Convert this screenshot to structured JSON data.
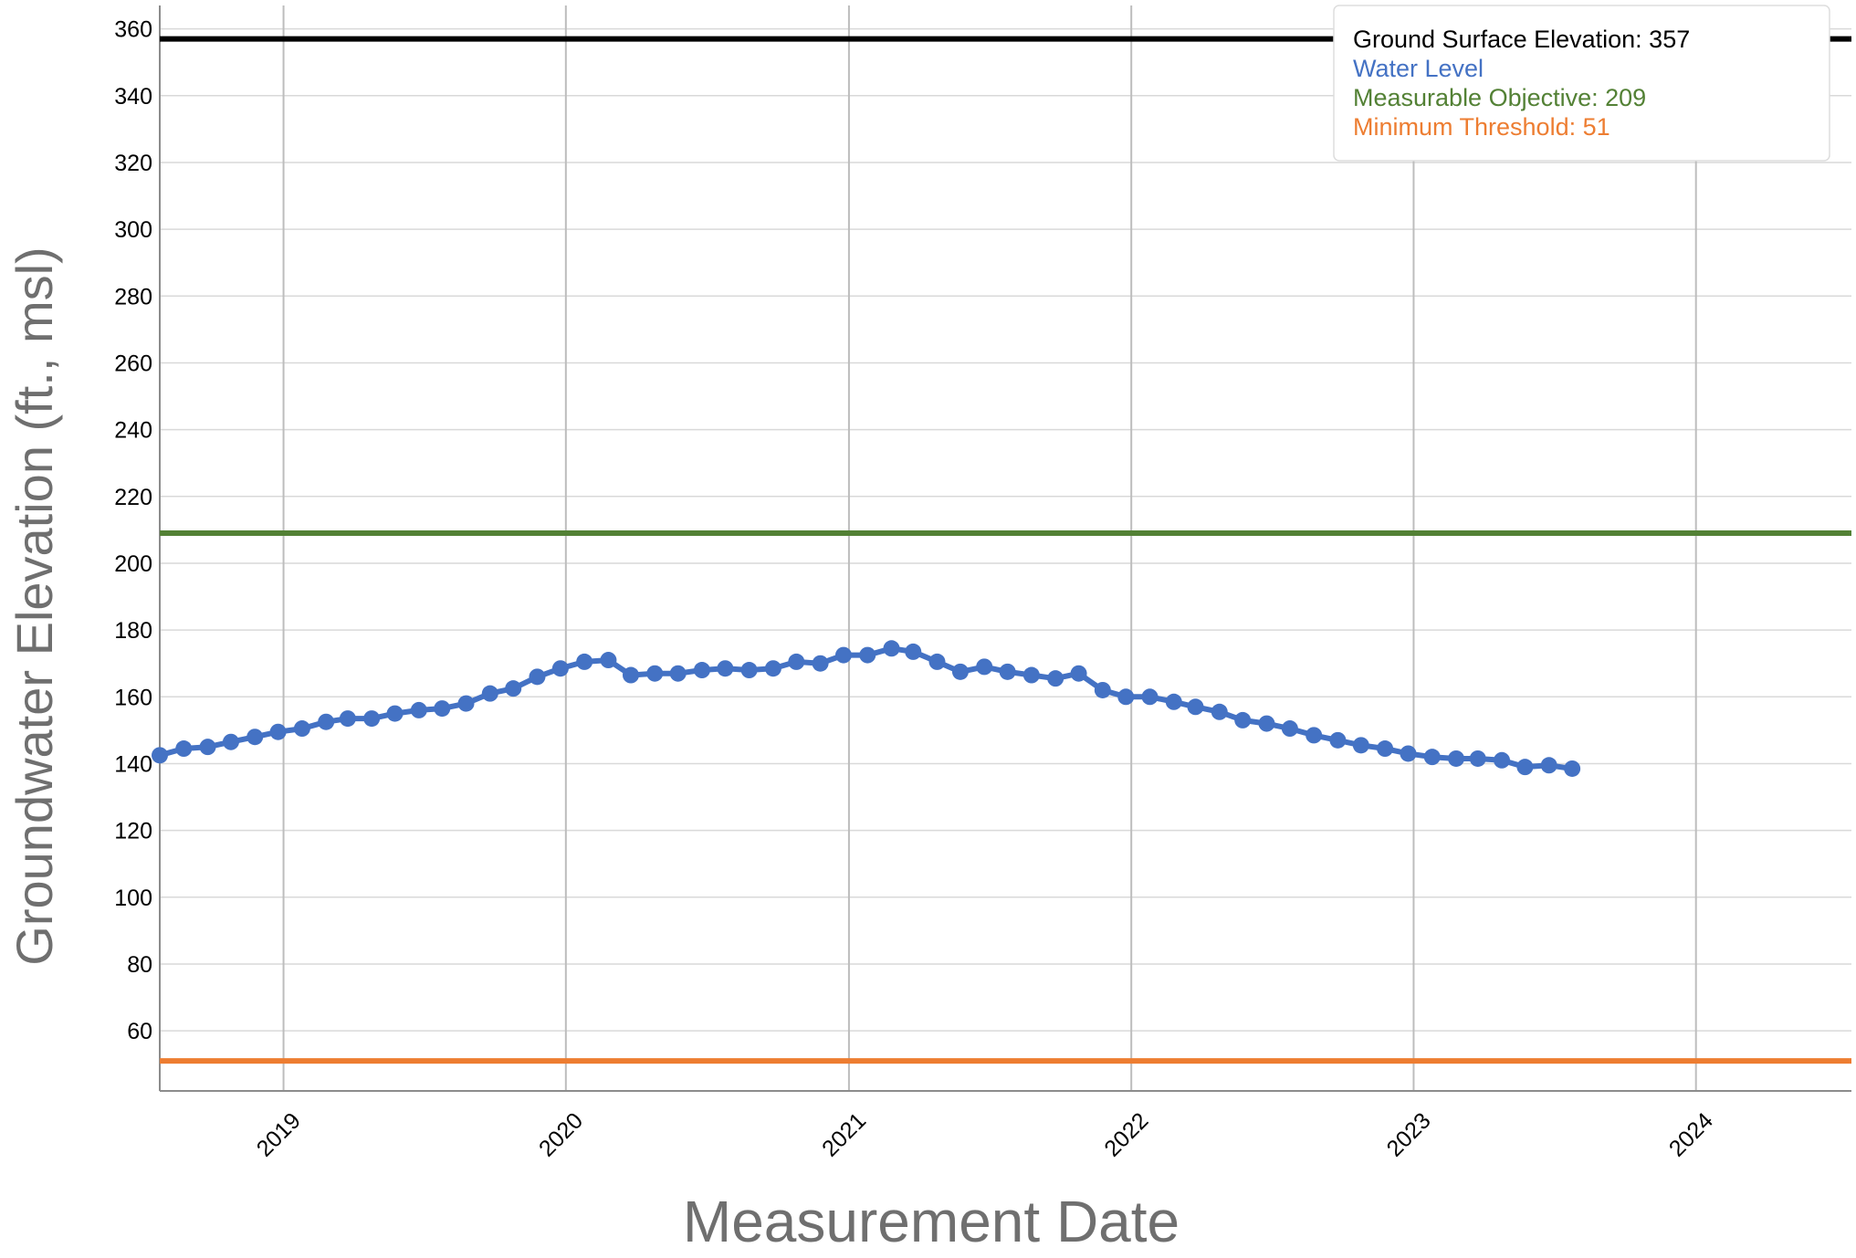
{
  "chart_data": {
    "type": "line",
    "xlabel": "Measurement Date",
    "ylabel": "Groundwater Elevation (ft., msl)",
    "xlim": [
      "2018-07-25",
      "2024-07-20"
    ],
    "ylim": [
      42,
      367
    ],
    "x_ticks": [
      "2019",
      "2020",
      "2021",
      "2022",
      "2023",
      "2024"
    ],
    "y_ticks": [
      60,
      80,
      100,
      120,
      140,
      160,
      180,
      200,
      220,
      240,
      260,
      280,
      300,
      320,
      340,
      360
    ],
    "grid": true,
    "legend_position": "top-right",
    "reference_lines": [
      {
        "name": "Ground Surface Elevation: 357",
        "value": 357,
        "color": "#000000"
      },
      {
        "name": "Measurable Objective: 209",
        "value": 209,
        "color": "#538135"
      },
      {
        "name": "Minimum Threshold: 51",
        "value": 51,
        "color": "#ed7d31"
      }
    ],
    "series": [
      {
        "name": "Water Level",
        "color": "#4472c4",
        "x": [
          "2018-07-25",
          "2018-08-25",
          "2018-09-25",
          "2018-10-25",
          "2018-11-25",
          "2018-12-25",
          "2019-01-25",
          "2019-02-25",
          "2019-03-25",
          "2019-04-25",
          "2019-05-25",
          "2019-06-25",
          "2019-07-25",
          "2019-08-25",
          "2019-09-25",
          "2019-10-25",
          "2019-11-25",
          "2019-12-25",
          "2020-01-25",
          "2020-02-25",
          "2020-03-25",
          "2020-04-25",
          "2020-05-25",
          "2020-06-25",
          "2020-07-25",
          "2020-08-25",
          "2020-09-25",
          "2020-10-25",
          "2020-11-25",
          "2020-12-25",
          "2021-01-25",
          "2021-02-25",
          "2021-03-25",
          "2021-04-25",
          "2021-05-25",
          "2021-06-25",
          "2021-07-25",
          "2021-08-25",
          "2021-09-25",
          "2021-10-25",
          "2021-11-25",
          "2021-12-25",
          "2022-01-25",
          "2022-02-25",
          "2022-03-25",
          "2022-04-25",
          "2022-05-25",
          "2022-06-25",
          "2022-07-25",
          "2022-08-25",
          "2022-09-25",
          "2022-10-25",
          "2022-11-25",
          "2022-12-25",
          "2023-01-25",
          "2023-02-25",
          "2023-03-25",
          "2023-04-25",
          "2023-05-25",
          "2023-06-25",
          "2023-07-25"
        ],
        "values": [
          142.5,
          144.5,
          145,
          146.5,
          148,
          149.5,
          150.5,
          152.5,
          153.5,
          153.5,
          155,
          156,
          156.5,
          158,
          161,
          162.5,
          166,
          168.5,
          170.5,
          171,
          166.5,
          167,
          167,
          168,
          168.5,
          168,
          168.5,
          170.5,
          170,
          172.5,
          172.5,
          174.5,
          173.5,
          170.5,
          167.5,
          169,
          167.5,
          166.5,
          165.5,
          167,
          162,
          160,
          160,
          158.5,
          157,
          155.5,
          153,
          152,
          150.5,
          148.5,
          147,
          145.5,
          144.5,
          143,
          142,
          141.5,
          141.5,
          141,
          139,
          139.5,
          138.5
        ]
      }
    ]
  },
  "legend": {
    "ground_surface": "Ground Surface Elevation: 357",
    "water_level": "Water Level",
    "measurable_objective": "Measurable Objective: 209",
    "minimum_threshold": "Minimum Threshold: 51"
  }
}
